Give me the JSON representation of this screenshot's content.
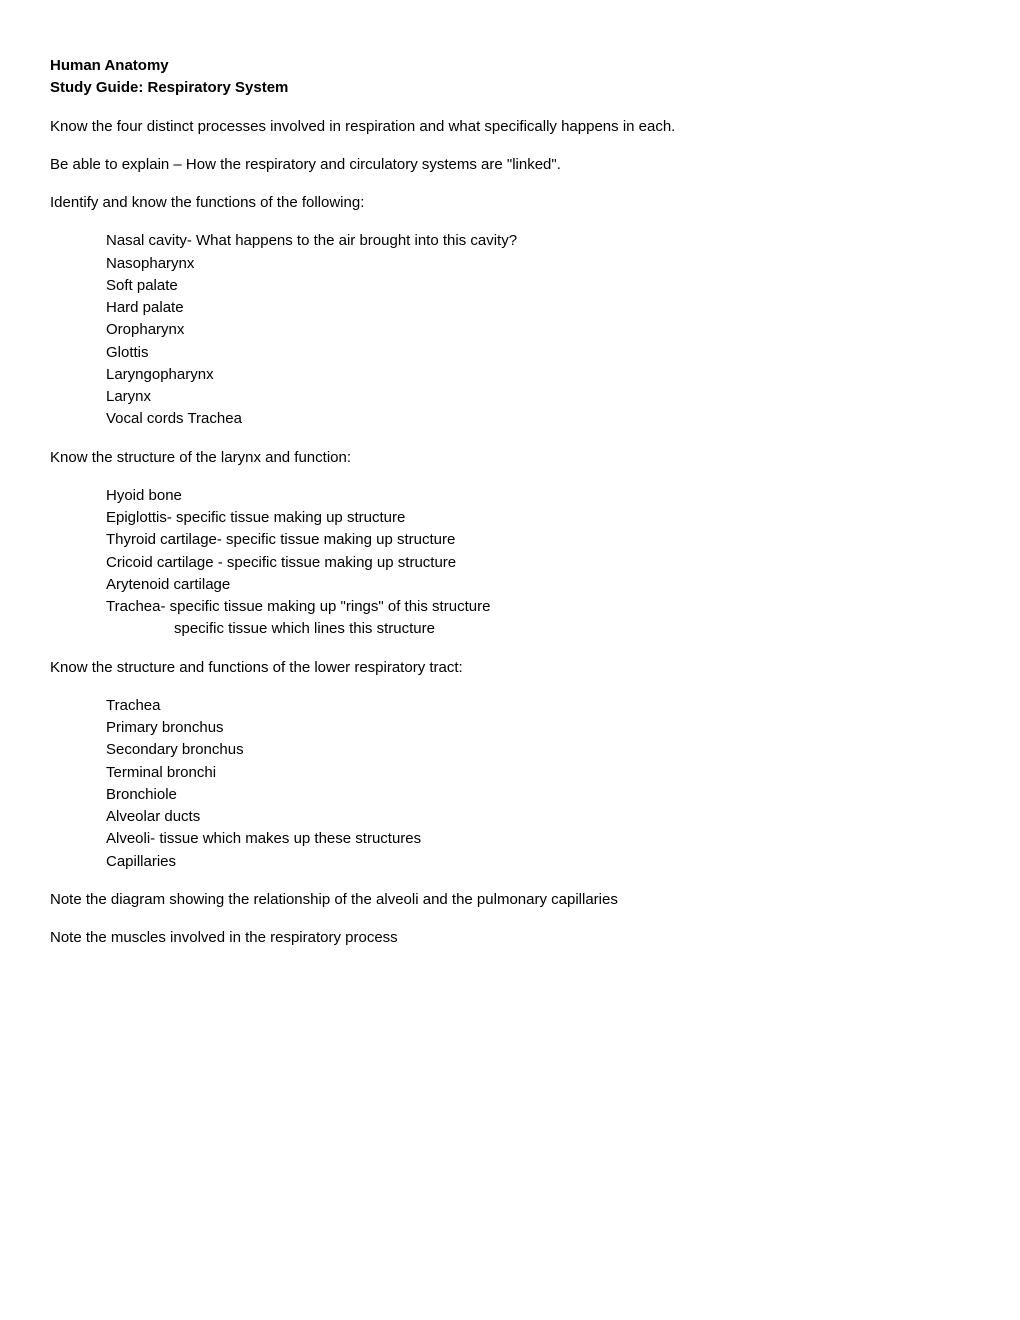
{
  "header": {
    "title1": "Human Anatomy",
    "title2": "Study Guide: Respiratory System"
  },
  "intro": {
    "line1": "Know the four distinct processes involved in respiration and what specifically happens in each.",
    "line2": "Be able to explain – How the respiratory and circulatory systems are \"linked\".",
    "line3": "Identify and know the functions of the following:"
  },
  "list1": {
    "items": [
      "Nasal cavity- What happens to the air brought into this cavity?",
      "Nasopharynx",
      "Soft palate",
      "Hard palate",
      "Oropharynx",
      "Glottis",
      "Laryngopharynx",
      "Larynx",
      "Vocal cords Trachea"
    ]
  },
  "section2": {
    "heading": "Know the structure of the larynx and function:",
    "items": [
      "Hyoid bone",
      "Epiglottis- specific tissue making up structure",
      "Thyroid cartilage- specific tissue making up structure",
      "Cricoid cartilage - specific tissue making up structure",
      "Arytenoid cartilage",
      "Trachea- specific tissue making up \"rings\" of this structure"
    ],
    "subitem": "specific tissue which lines this structure"
  },
  "section3": {
    "heading": "Know the structure and functions of the lower respiratory tract:",
    "items": [
      "Trachea",
      "Primary bronchus",
      "Secondary bronchus",
      "Terminal bronchi",
      "Bronchiole",
      "Alveolar ducts",
      "Alveoli- tissue which makes up these structures",
      "Capillaries"
    ]
  },
  "footer": {
    "line1": "Note the diagram showing the relationship of the alveoli and the pulmonary capillaries",
    "line2": "Note the muscles involved in the respiratory process"
  }
}
